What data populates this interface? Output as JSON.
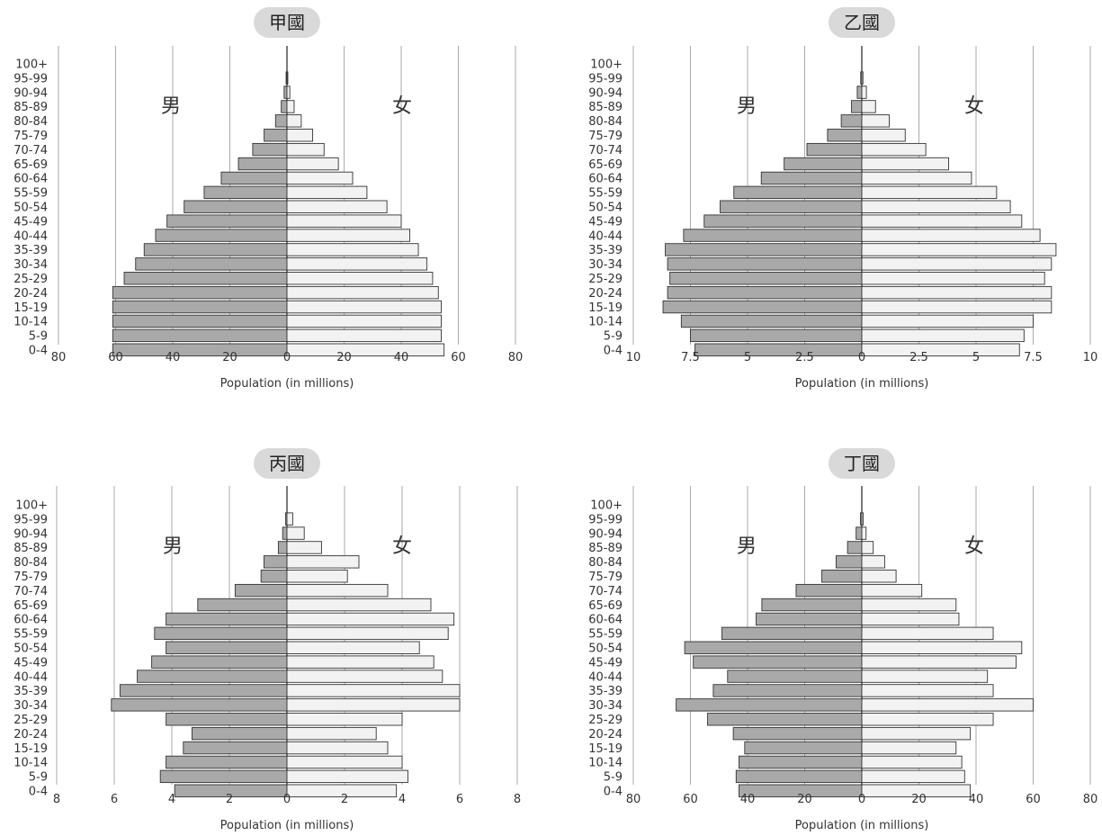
{
  "colors": {
    "male_fill": "#a9a9a9",
    "female_fill": "#f2f2f2",
    "bar_stroke": "#333333",
    "gridline": "#aaaaaa",
    "title_badge": "#d9d9d9",
    "text": "#333333"
  },
  "chart_data": [
    {
      "type": "population-pyramid",
      "title": "甲國",
      "xlabel": "Population (in millions)",
      "male_label": "男",
      "female_label": "女",
      "age_groups": [
        "0-4",
        "5-9",
        "10-14",
        "15-19",
        "20-24",
        "25-29",
        "30-34",
        "35-39",
        "40-44",
        "45-49",
        "50-54",
        "55-59",
        "60-64",
        "65-69",
        "70-74",
        "75-79",
        "80-84",
        "85-89",
        "90-94",
        "95-99",
        "100+"
      ],
      "max": 80,
      "ticks": [
        "80",
        "60",
        "40",
        "20",
        "0",
        "20",
        "40",
        "60",
        "80"
      ],
      "male": [
        61,
        61,
        61,
        61,
        61,
        57,
        53,
        50,
        46,
        42,
        36,
        29,
        23,
        17,
        12,
        8,
        4,
        2,
        1,
        0.3,
        0
      ],
      "female": [
        55,
        54,
        54,
        54,
        53,
        51,
        49,
        46,
        43,
        40,
        35,
        28,
        23,
        18,
        13,
        9,
        5,
        2.5,
        1,
        0.3,
        0
      ]
    },
    {
      "type": "population-pyramid",
      "title": "乙國",
      "xlabel": "Population (in millions)",
      "male_label": "男",
      "female_label": "女",
      "age_groups": [
        "0-4",
        "5-9",
        "10-14",
        "15-19",
        "20-24",
        "25-29",
        "30-34",
        "35-39",
        "40-44",
        "45-49",
        "50-54",
        "55-59",
        "60-64",
        "65-69",
        "70-74",
        "75-79",
        "80-84",
        "85-89",
        "90-94",
        "95-99",
        "100+"
      ],
      "max": 10,
      "ticks": [
        "10",
        "7.5",
        "5",
        "2.5",
        "0",
        "2.5",
        "5",
        "7.5",
        "10"
      ],
      "male": [
        7.3,
        7.5,
        7.9,
        8.7,
        8.5,
        8.4,
        8.5,
        8.6,
        7.8,
        6.9,
        6.2,
        5.6,
        4.4,
        3.4,
        2.4,
        1.5,
        0.9,
        0.45,
        0.2,
        0.05,
        0
      ],
      "female": [
        6.9,
        7.1,
        7.5,
        8.3,
        8.3,
        8.0,
        8.3,
        8.5,
        7.8,
        7.0,
        6.5,
        5.9,
        4.8,
        3.8,
        2.8,
        1.9,
        1.2,
        0.6,
        0.2,
        0.05,
        0
      ]
    },
    {
      "type": "population-pyramid",
      "title": "丙國",
      "xlabel": "Population (in millions)",
      "male_label": "男",
      "female_label": "女",
      "age_groups": [
        "0-4",
        "5-9",
        "10-14",
        "15-19",
        "20-24",
        "25-29",
        "30-34",
        "35-39",
        "40-44",
        "45-49",
        "50-54",
        "55-59",
        "60-64",
        "65-69",
        "70-74",
        "75-79",
        "80-84",
        "85-89",
        "90-94",
        "95-99",
        "100+"
      ],
      "max": 8,
      "ticks": [
        "8",
        "6",
        "4",
        "2",
        "0",
        "2",
        "4",
        "6",
        "8"
      ],
      "male": [
        3.9,
        4.4,
        4.2,
        3.6,
        3.3,
        4.2,
        6.1,
        5.8,
        5.2,
        4.7,
        4.2,
        4.6,
        4.2,
        3.1,
        1.8,
        0.9,
        0.8,
        0.3,
        0.15,
        0.05,
        0
      ],
      "female": [
        3.8,
        4.2,
        4.0,
        3.5,
        3.1,
        4.0,
        6.0,
        6.0,
        5.4,
        5.1,
        4.6,
        5.6,
        5.8,
        5.0,
        3.5,
        2.1,
        2.5,
        1.2,
        0.6,
        0.2,
        0
      ]
    },
    {
      "type": "population-pyramid",
      "title": "丁國",
      "xlabel": "Population (in millions)",
      "male_label": "男",
      "female_label": "女",
      "age_groups": [
        "0-4",
        "5-9",
        "10-14",
        "15-19",
        "20-24",
        "25-29",
        "30-34",
        "35-39",
        "40-44",
        "45-49",
        "50-54",
        "55-59",
        "60-64",
        "65-69",
        "70-74",
        "75-79",
        "80-84",
        "85-89",
        "90-94",
        "95-99",
        "100+"
      ],
      "max": 80,
      "ticks": [
        "80",
        "60",
        "40",
        "20",
        "0",
        "20",
        "40",
        "60",
        "80"
      ],
      "male": [
        43,
        44,
        43,
        41,
        45,
        54,
        65,
        52,
        47,
        59,
        62,
        49,
        37,
        35,
        23,
        14,
        9,
        5,
        2,
        0.5,
        0
      ],
      "female": [
        38,
        36,
        35,
        33,
        38,
        46,
        60,
        46,
        44,
        54,
        56,
        46,
        34,
        33,
        21,
        12,
        8,
        4,
        1.5,
        0.5,
        0
      ]
    }
  ]
}
